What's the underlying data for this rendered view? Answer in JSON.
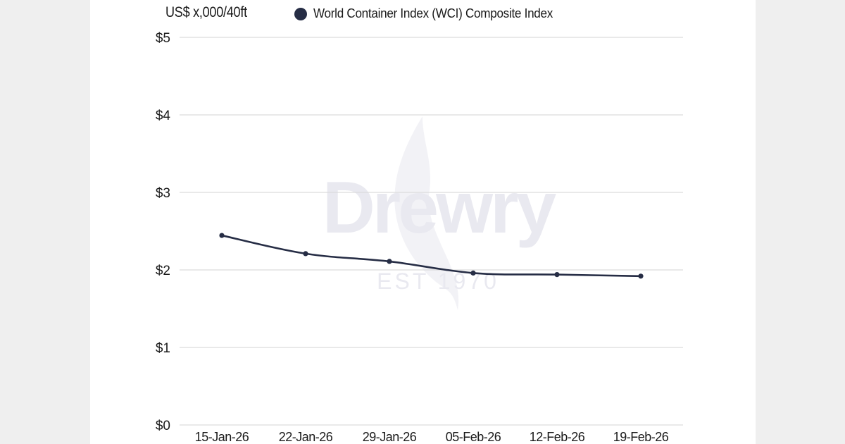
{
  "colors": {
    "series": "#262d45",
    "grid": "#dcdcdc",
    "page_background": "#efefef",
    "card_background": "#ffffff",
    "watermark": "#e9e9f0"
  },
  "header": {
    "unit_label": "US$ x,000/40ft"
  },
  "legend": {
    "items": [
      {
        "label": "World Container Index (WCI) Composite Index",
        "icon": "filled-circle"
      }
    ]
  },
  "watermark": {
    "brand": "Drewry",
    "tagline": "EST 1970"
  },
  "chart_data": {
    "type": "line",
    "title": "",
    "xlabel": "",
    "ylabel": "US$ x,000/40ft",
    "categories": [
      "15-Jan-26",
      "22-Jan-26",
      "29-Jan-26",
      "05-Feb-26",
      "12-Feb-26",
      "19-Feb-26"
    ],
    "series": [
      {
        "name": "World Container Index (WCI) Composite Index",
        "values": [
          2.445,
          2.21,
          2.11,
          1.96,
          1.94,
          1.92
        ]
      }
    ],
    "yticks": [
      "$0",
      "$1",
      "$2",
      "$3",
      "$4",
      "$5"
    ],
    "ylim": [
      0,
      5
    ],
    "grid": true,
    "legend_position": "top"
  }
}
